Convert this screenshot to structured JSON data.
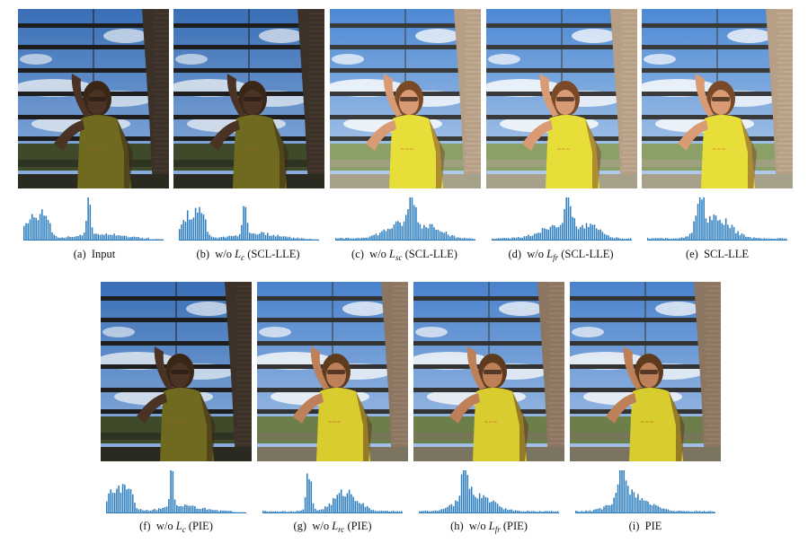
{
  "figure": {
    "panels": [
      {
        "id": "a",
        "label": "(a)",
        "pre": "Input",
        "symbol": "",
        "sub": "",
        "post": "",
        "variant": "dark"
      },
      {
        "id": "b",
        "label": "(b)",
        "pre": "w/o",
        "symbol": "L",
        "sub": "c",
        "post": "(SCL-LLE)",
        "variant": "dark"
      },
      {
        "id": "c",
        "label": "(c)",
        "pre": "w/o",
        "symbol": "L",
        "sub": "sc",
        "post": "(SCL-LLE)",
        "variant": "bright"
      },
      {
        "id": "d",
        "label": "(d)",
        "pre": "w/o",
        "symbol": "L",
        "sub": "fr",
        "post": "(SCL-LLE)",
        "variant": "bright"
      },
      {
        "id": "e",
        "label": "(e)",
        "pre": "SCL-LLE",
        "symbol": "",
        "sub": "",
        "post": "",
        "variant": "bright"
      },
      {
        "id": "f",
        "label": "(f)",
        "pre": "w/o",
        "symbol": "L",
        "sub": "c",
        "post": "(PIE)",
        "variant": "dark"
      },
      {
        "id": "g",
        "label": "(g)",
        "pre": "w/o",
        "symbol": "L",
        "sub": "rc",
        "post": "(PIE)",
        "variant": "mid"
      },
      {
        "id": "h",
        "label": "(h)",
        "pre": "w/o",
        "symbol": "L",
        "sub": "fr",
        "post": "(PIE)",
        "variant": "mid"
      },
      {
        "id": "i",
        "label": "(i)",
        "pre": "PIE",
        "symbol": "",
        "sub": "",
        "post": "",
        "variant": "mid"
      }
    ],
    "colors": {
      "histogram": "#2f7fc0",
      "sky": "#5f8fd0",
      "rail": "#2c2c2c",
      "shirt_dark": "#6f6a20",
      "shirt_bright": "#e6dc3a",
      "ground": "#5d6a3a"
    }
  }
}
